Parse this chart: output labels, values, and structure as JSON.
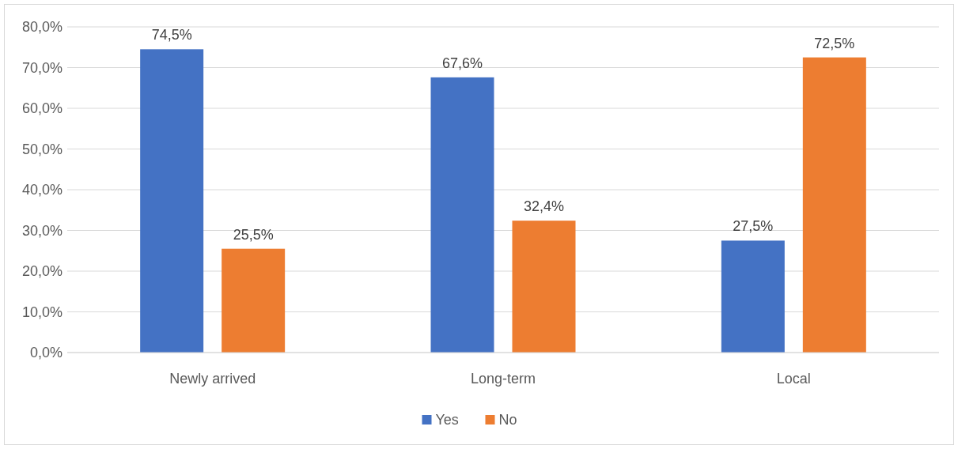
{
  "chart_data": {
    "type": "bar",
    "categories": [
      "Newly arrived",
      "Long-term",
      "Local"
    ],
    "series": [
      {
        "name": "Yes",
        "color": "#4472c4",
        "values": [
          74.5,
          67.6,
          27.5
        ],
        "value_labels": [
          "74,5%",
          "67,6%",
          "27,5%"
        ]
      },
      {
        "name": "No",
        "color": "#ed7d31",
        "values": [
          25.5,
          32.4,
          72.5
        ],
        "value_labels": [
          "25,5%",
          "32,4%",
          "72,5%"
        ]
      }
    ],
    "ylim": [
      0,
      80
    ],
    "yticks": [
      {
        "value": 0,
        "label": "0,0%"
      },
      {
        "value": 10,
        "label": "10,0%"
      },
      {
        "value": 20,
        "label": "20,0%"
      },
      {
        "value": 30,
        "label": "30,0%"
      },
      {
        "value": 40,
        "label": "40,0%"
      },
      {
        "value": 50,
        "label": "50,0%"
      },
      {
        "value": 60,
        "label": "60,0%"
      },
      {
        "value": 70,
        "label": "70,0%"
      },
      {
        "value": 80,
        "label": "80,0%"
      }
    ],
    "grid": "y",
    "legend": "bottom"
  }
}
